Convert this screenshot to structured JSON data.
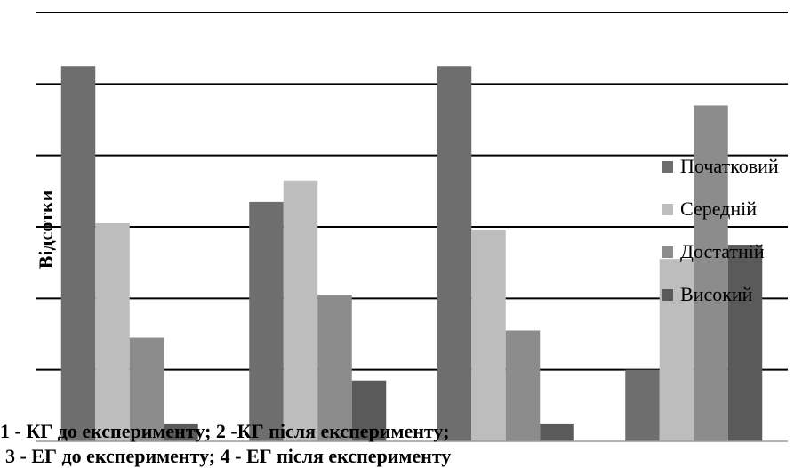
{
  "chart_data": {
    "type": "bar",
    "categories": [
      "1",
      "2",
      "3",
      "4"
    ],
    "series": [
      {
        "name": "Початковий",
        "values": [
          52.5,
          33.5,
          52.5,
          10.0
        ],
        "color": "#6e6e6e"
      },
      {
        "name": "Середній",
        "values": [
          30.5,
          36.5,
          29.5,
          25.5
        ],
        "color": "#bdbdbd"
      },
      {
        "name": "Достатній",
        "values": [
          14.5,
          20.5,
          15.5,
          47.0
        ],
        "color": "#8c8c8c"
      },
      {
        "name": "Високий",
        "values": [
          2.5,
          8.5,
          2.5,
          27.5
        ],
        "color": "#5a5a5a"
      }
    ],
    "ylabel": "Відсотки",
    "ylim": [
      0,
      60
    ],
    "y_gridlines": [
      10,
      20,
      30,
      40,
      50,
      60
    ],
    "grid": true,
    "legend_position": "right"
  },
  "caption": {
    "line1": "1 - КГ до експерименту; 2 -КГ після експерименту;",
    "line2": "3 - ЕГ до експерименту; 4 - ЕГ після експерименту"
  }
}
